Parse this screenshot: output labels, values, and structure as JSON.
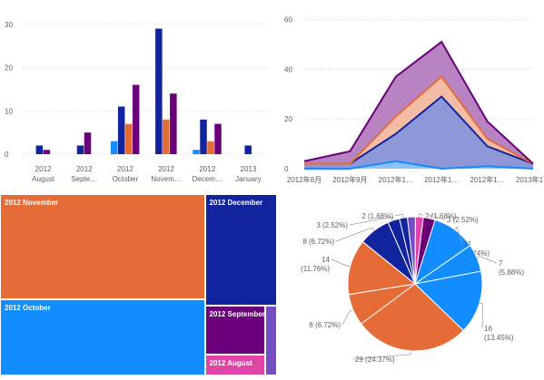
{
  "colors": {
    "navy": "#12239e",
    "orange": "#e66c37",
    "purple": "#6b007b",
    "lightblue": "#118dff",
    "pink": "#e044a7",
    "violet": "#744ec2",
    "areaTop": "#b784c1",
    "areaMid": "#f3bca6",
    "areaLow": "#8e98d8",
    "areaBase": "#8fc1f4",
    "grid": "#c8c8c8",
    "axisText": "#605e5c"
  },
  "chart_data": [
    {
      "type": "bar",
      "categories": [
        "2012 August",
        "2012 Septe…",
        "2012 October",
        "2012 Novem…",
        "2012 Decem…",
        "2013 January"
      ],
      "category_lines": [
        [
          "2012",
          "August"
        ],
        [
          "2012",
          "Septe…"
        ],
        [
          "2012",
          "October"
        ],
        [
          "2012",
          "Novem…"
        ],
        [
          "2012",
          "Decem…"
        ],
        [
          "2013",
          "January"
        ]
      ],
      "series": [
        {
          "color": "lightblue",
          "values": [
            0,
            0,
            3,
            0,
            1,
            0
          ]
        },
        {
          "color": "navy",
          "values": [
            2,
            2,
            11,
            29,
            8,
            2
          ]
        },
        {
          "color": "orange",
          "values": [
            0,
            0,
            7,
            8,
            3,
            0
          ]
        },
        {
          "color": "purple",
          "values": [
            1,
            5,
            16,
            14,
            7,
            0
          ]
        }
      ],
      "yticks": [
        0,
        10,
        20,
        30
      ],
      "ylim": [
        0,
        31
      ],
      "grid": true,
      "title": "",
      "xlabel": "",
      "ylabel": ""
    },
    {
      "type": "area",
      "stacked": true,
      "categories": [
        "2012年8月",
        "2012年9月",
        "2012年1…",
        "2012年1…",
        "2012年1…",
        "2013年1…"
      ],
      "series": [
        {
          "color": "lightblue",
          "fill": "areaBase",
          "values": [
            0,
            0,
            3,
            0,
            1,
            0
          ]
        },
        {
          "color": "navy",
          "fill": "areaLow",
          "values": [
            2,
            2,
            11,
            29,
            8,
            2
          ]
        },
        {
          "color": "orange",
          "fill": "areaMid",
          "values": [
            0,
            0,
            7,
            8,
            3,
            0
          ]
        },
        {
          "color": "purple",
          "fill": "areaTop",
          "values": [
            1,
            5,
            16,
            14,
            7,
            0
          ]
        }
      ],
      "yticks": [
        0,
        20,
        40,
        60
      ],
      "ylim": [
        0,
        62
      ],
      "grid": true,
      "title": "",
      "xlabel": "",
      "ylabel": ""
    },
    {
      "type": "treemap",
      "items": [
        {
          "label": "2012 November",
          "value": 51,
          "color": "orange"
        },
        {
          "label": "2012 October",
          "value": 37,
          "color": "lightblue"
        },
        {
          "label": "2012 December",
          "value": 19,
          "color": "navy"
        },
        {
          "label": "2012 September",
          "value": 7,
          "color": "purple"
        },
        {
          "label": "2012 August",
          "value": 3,
          "color": "pink"
        },
        {
          "label": "",
          "value": 2,
          "color": "violet"
        }
      ]
    },
    {
      "type": "pie",
      "slices": [
        {
          "value": 2,
          "label": "2 (1.68%)",
          "color": "pink"
        },
        {
          "value": 3,
          "label": "3 (2.52%)",
          "color": "purple"
        },
        {
          "value": 11,
          "label": "11 (9.24%)",
          "color": "lightblue"
        },
        {
          "value": 7,
          "label": "7 (5.88%)",
          "color": "lightblue"
        },
        {
          "value": 16,
          "label": "16 (13.45%)",
          "color": "lightblue"
        },
        {
          "value": 29,
          "label": "29 (24.37%)",
          "color": "orange"
        },
        {
          "value": 8,
          "label": "8 (6.72%)",
          "color": "orange"
        },
        {
          "value": 14,
          "label": "14 (11.76%)",
          "color": "orange"
        },
        {
          "value": 8,
          "label": "8 (6.72%)",
          "color": "navy"
        },
        {
          "value": 3,
          "label": "3 (2.52%)",
          "color": "navy"
        },
        {
          "value": 2,
          "label": "2 (1.68%)",
          "color": "navy"
        },
        {
          "value": 2,
          "label": "",
          "color": "violet"
        }
      ]
    }
  ]
}
